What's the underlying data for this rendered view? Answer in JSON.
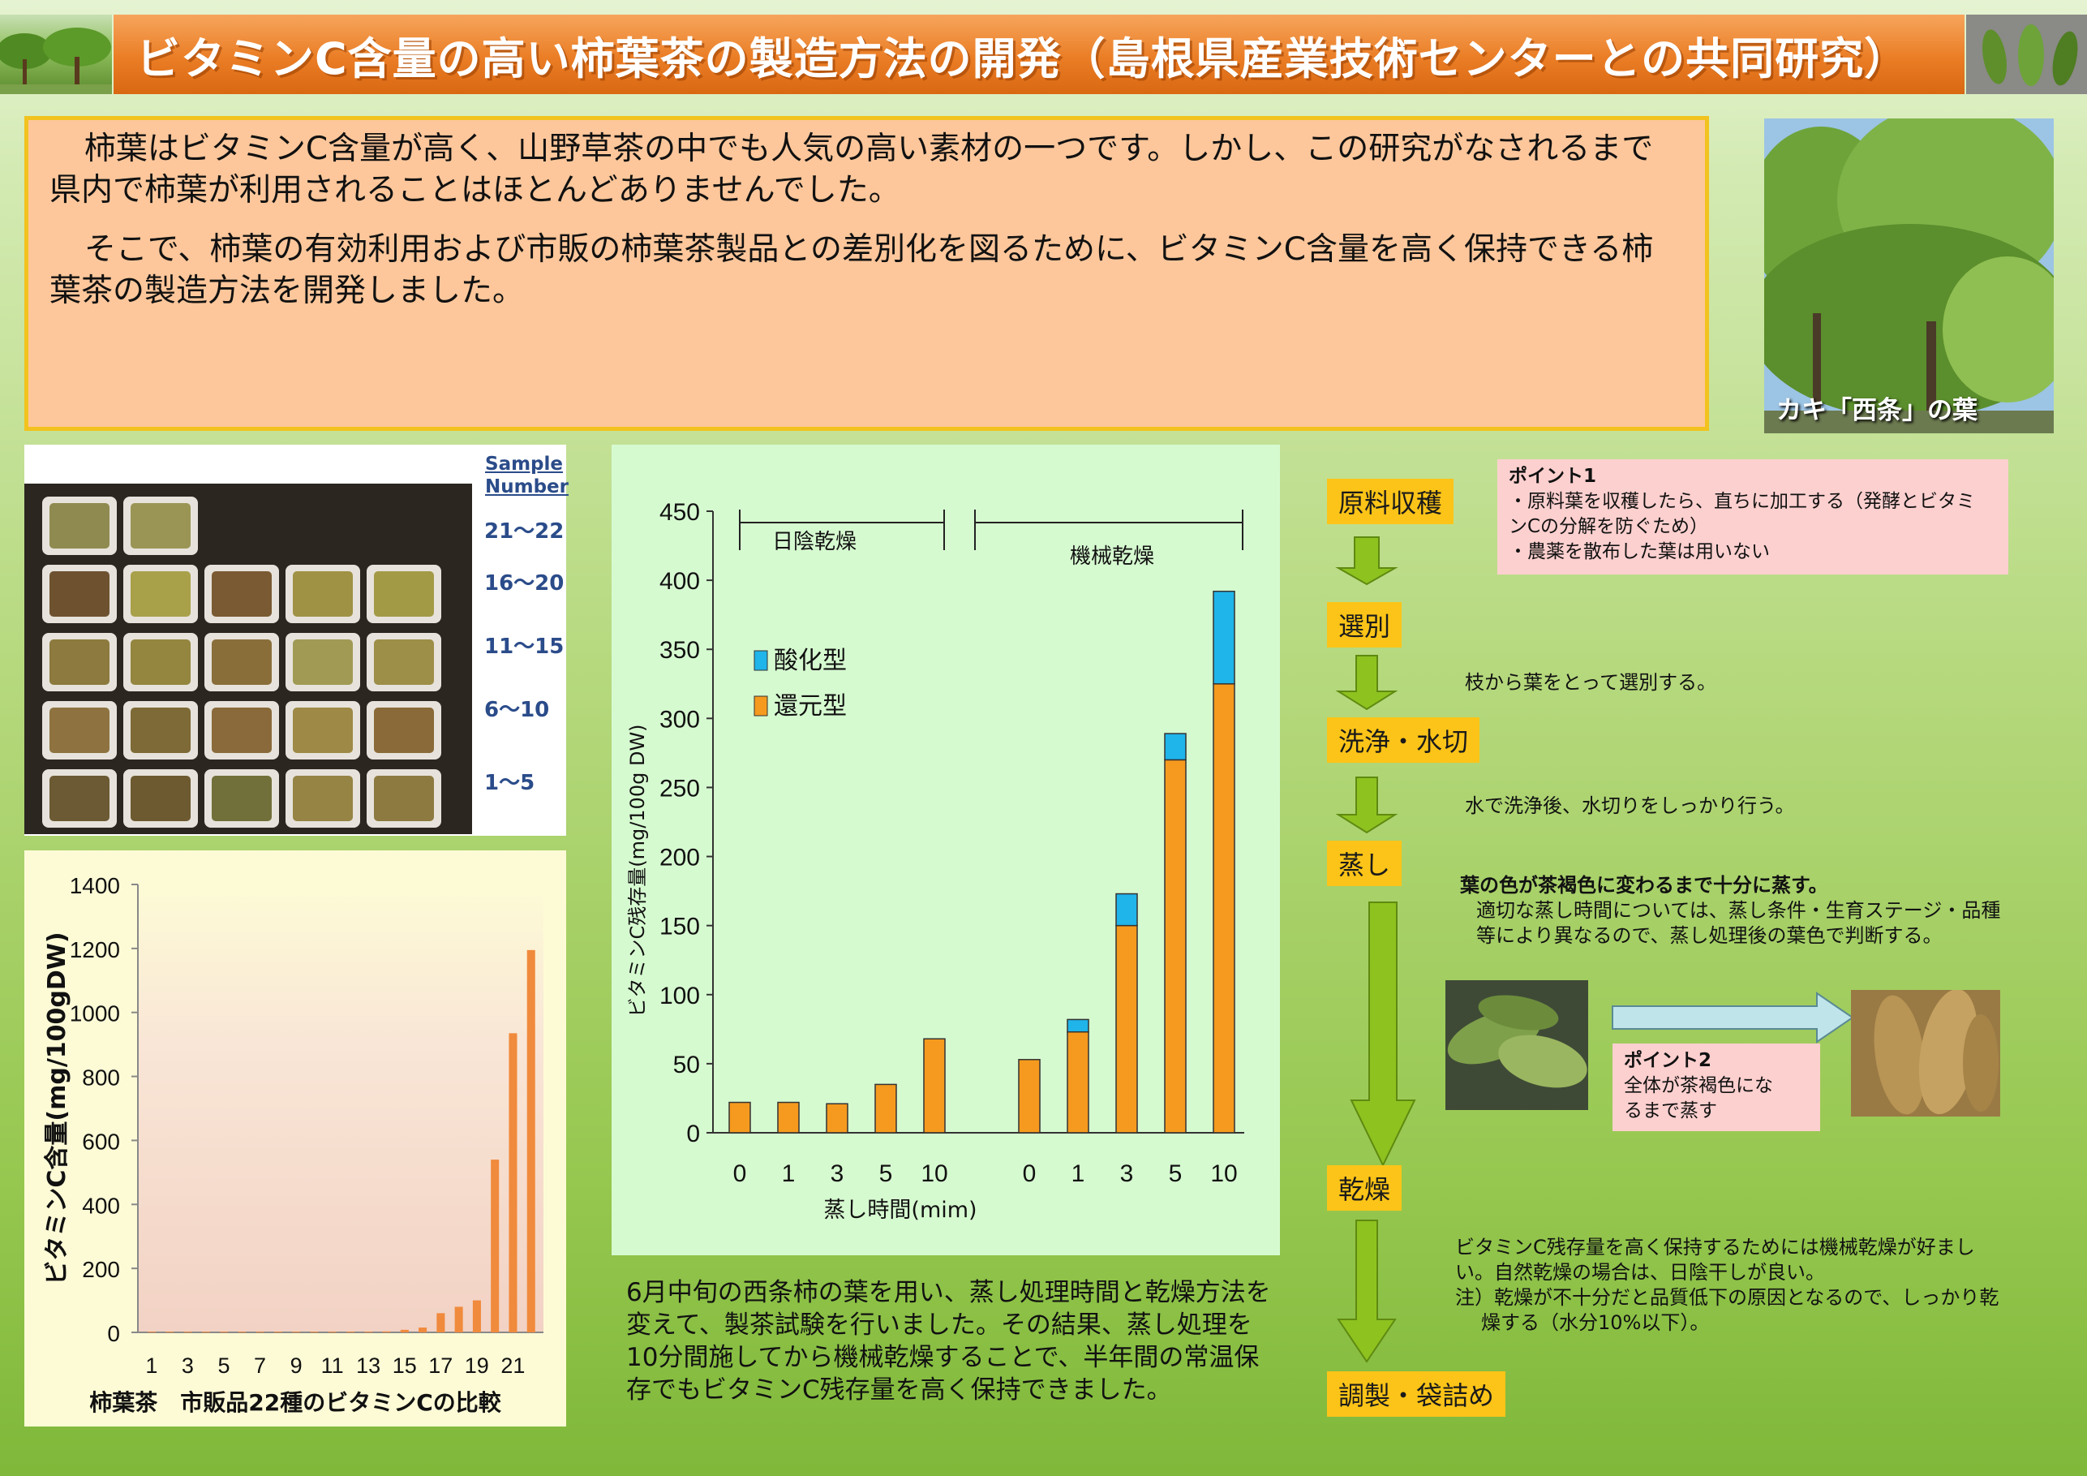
{
  "header": {
    "title": "ビタミンC含量の高い柿葉茶の製造方法の開発（島根県産業技術センターとの共同研究）"
  },
  "intro": {
    "paragraph1": "柿葉はビタミンC含量が高く、山野草茶の中でも人気の高い素材の一つです。しかし、この研究がなされるまで県内で柿葉が利用されることはほとんどありませんでした。",
    "paragraph2": "そこで、柿葉の有効利用および市販の柿葉茶製品との差別化を図るために、ビタミンC含量を高く保持できる柿葉茶の製造方法を開発しました。"
  },
  "kaki_photo": {
    "caption": "カキ「西条」の葉"
  },
  "samples": {
    "header_line1": "Sample",
    "header_line2": "Number",
    "ranges": [
      "21～22",
      "16～20",
      "11～15",
      "6～10",
      "1～5"
    ]
  },
  "result_text": "6月中旬の西条柿の葉を用い、蒸し処理時間と乾燥方法を変えて、製茶試験を行いました。その結果、蒸し処理を10分間施してから機械乾燥することで、半年間の常温保存でもビタミンC残存量を高く保持できました。",
  "process": {
    "steps": [
      "原料収穫",
      "選別",
      "洗浄・水切",
      "蒸し",
      "乾燥",
      "調製・袋詰め"
    ],
    "point1": {
      "title": "ポイント1",
      "line1": "・原料葉を収穫したら、直ちに加工する（発酵とビタミ",
      "line2": "ンCの分解を防ぐため）",
      "line3": "・農薬を散布した葉は用いない"
    },
    "note_select": "枝から葉をとって選別する。",
    "note_wash": "水で洗浄後、水切りをしっかり行う。",
    "note_steam_line1": "葉の色が茶褐色に変わるまで十分に蒸す。",
    "note_steam_line2": "適切な蒸し時間については、蒸し条件・生育ステージ・品種",
    "note_steam_line3": "等により異なるので、蒸し処理後の葉色で判断する。",
    "point2": {
      "title": "ポイント2",
      "line1": "全体が茶褐色にな",
      "line2": "るまで蒸す"
    },
    "note_dry_line1": "ビタミンC残存量を高く保持するためには機械乾燥が好まし",
    "note_dry_line2": "い。自然乾燥の場合は、日陰干しが良い。",
    "note_dry_line3": "注）乾燥が不十分だと品質低下の原因となるので、しっかり乾",
    "note_dry_line4": "燥する（水分10%以下）。"
  },
  "colors": {
    "title_orange": "#ea7d25",
    "intro_bg": "#fdc79b",
    "step_yellow": "#fcc418",
    "bar_orange": "#f59a1e",
    "bar_cyan": "#1fb4ea",
    "arrow_green": "#8ec21f"
  },
  "chart_data": [
    {
      "type": "bar",
      "title": "柿葉茶　市販品22種のビタミンCの比較",
      "ylabel": "ビタミンC含量(mg/100gDW)",
      "xlabel": "",
      "ylim": [
        0,
        1400
      ],
      "yticks": [
        0,
        200,
        400,
        600,
        800,
        1000,
        1200,
        1400
      ],
      "categories": [
        "1",
        "2",
        "3",
        "4",
        "5",
        "6",
        "7",
        "8",
        "9",
        "10",
        "11",
        "12",
        "13",
        "14",
        "15",
        "16",
        "17",
        "18",
        "19",
        "20",
        "21",
        "22"
      ],
      "x_tick_labels": [
        "1",
        "3",
        "5",
        "7",
        "9",
        "11",
        "13",
        "15",
        "17",
        "19",
        "21"
      ],
      "values": [
        2,
        2,
        2,
        2,
        2,
        2,
        2,
        2,
        2,
        2,
        2,
        2,
        2,
        3,
        8,
        15,
        60,
        80,
        100,
        540,
        935,
        1195
      ],
      "grid": false,
      "legend": "none"
    },
    {
      "type": "bar",
      "stacked": true,
      "title": "",
      "ylabel": "ビタミンC残存量(mg/100g DW)",
      "xlabel": "蒸し時間(mim)",
      "ylim": [
        0,
        450
      ],
      "yticks": [
        0,
        50,
        100,
        150,
        200,
        250,
        300,
        350,
        400,
        450
      ],
      "groups": [
        {
          "name": "日陰乾燥",
          "categories": [
            "0",
            "1",
            "3",
            "5",
            "10"
          ]
        },
        {
          "name": "機械乾燥",
          "categories": [
            "0",
            "1",
            "3",
            "5",
            "10"
          ]
        }
      ],
      "series": [
        {
          "name": "還元型",
          "values": [
            22,
            22,
            21,
            35,
            68,
            53,
            73,
            150,
            270,
            325
          ]
        },
        {
          "name": "酸化型",
          "values": [
            0,
            0,
            0,
            0,
            0,
            0,
            9,
            23,
            19,
            67
          ]
        }
      ],
      "legend": "top-left",
      "grid": false
    }
  ]
}
